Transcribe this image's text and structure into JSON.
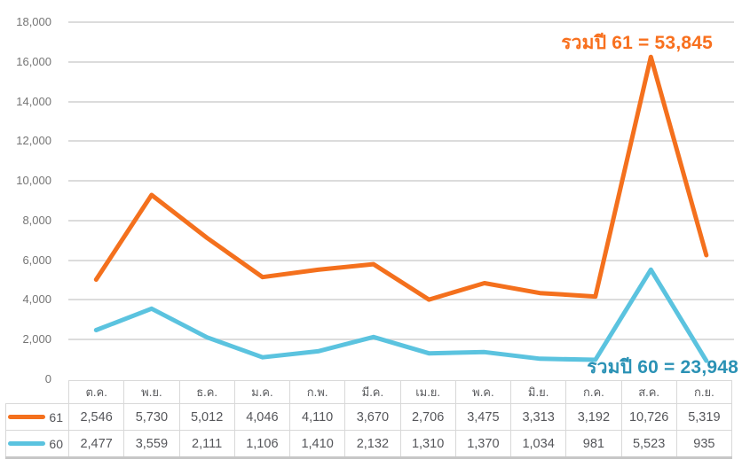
{
  "chart_data": {
    "type": "line",
    "stacking": "stacked",
    "title": "",
    "xlabel": "",
    "ylabel": "",
    "categories": [
      "ต.ค.",
      "พ.ย.",
      "ธ.ค.",
      "ม.ค.",
      "ก.พ.",
      "มี.ค.",
      "เม.ย.",
      "พ.ค.",
      "มิ.ย.",
      "ก.ค.",
      "ส.ค.",
      "ก.ย."
    ],
    "series": [
      {
        "name": "61",
        "color": "#F4701D",
        "values": [
          2546,
          5730,
          5012,
          4046,
          4110,
          3670,
          2706,
          3475,
          3313,
          3192,
          10726,
          5319
        ],
        "values_formatted": [
          "2,546",
          "5,730",
          "5,012",
          "4,046",
          "4,110",
          "3,670",
          "2,706",
          "3,475",
          "3,313",
          "3,192",
          "10,726",
          "5,319"
        ],
        "total": 53845,
        "total_label": "รวมปี 61 = 53,845",
        "total_label_color": "#F8701E"
      },
      {
        "name": "60",
        "color": "#5BC3DF",
        "values": [
          2477,
          3559,
          2111,
          1106,
          1410,
          2132,
          1310,
          1370,
          1034,
          981,
          5523,
          935
        ],
        "values_formatted": [
          "2,477",
          "3,559",
          "2,111",
          "1,106",
          "1,410",
          "2,132",
          "1,310",
          "1,370",
          "1,034",
          "981",
          "5,523",
          "935"
        ],
        "total": 23948,
        "total_label": "รวมปี 60 = 23,948",
        "total_label_color": "#2B92B5"
      }
    ],
    "ylim": [
      0,
      18000
    ],
    "ytick_step": 2000,
    "ytick_labels": [
      "18,000",
      "16,000",
      "14,000",
      "12,000",
      "10,000",
      "8,000",
      "6,000",
      "4,000",
      "2,000",
      "0"
    ],
    "grid": true,
    "legend_position": "data-table-left"
  },
  "colors": {
    "gridline": "#DCDCDC",
    "axis_label": "#757575",
    "table_border": "#D8D8D8",
    "table_text": "#55565A"
  }
}
